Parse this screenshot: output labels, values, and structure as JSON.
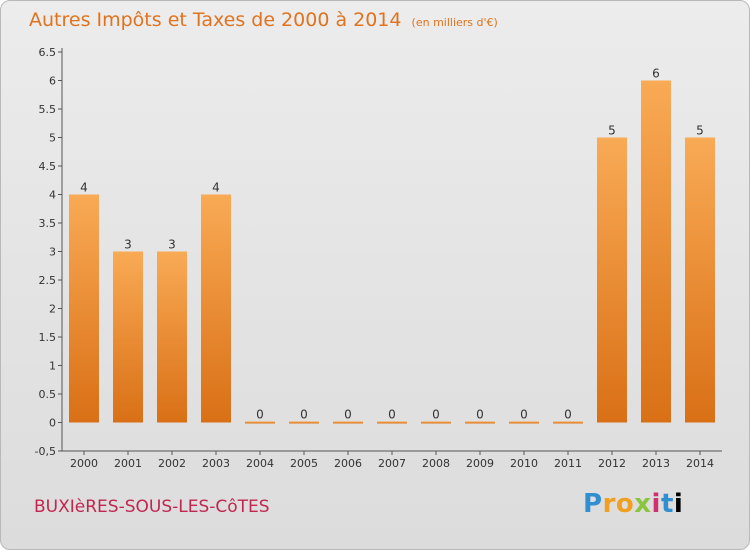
{
  "title": "Autres Impôts et Taxes de 2000 à 2014",
  "subtitle": "(en milliers d'€)",
  "commune": "BUXIèRES-SOUS-LES-CôTES",
  "logo_text": "Proxiti",
  "colors": {
    "bar_light": "#f9aa55",
    "bar_dark": "#d97016",
    "title": "#e0731f",
    "commune": "#c2264f"
  },
  "chart_data": {
    "type": "bar",
    "title": "Autres Impôts et Taxes de 2000 à 2014",
    "subtitle": "(en milliers d'€)",
    "categories": [
      "2000",
      "2001",
      "2002",
      "2003",
      "2004",
      "2005",
      "2006",
      "2007",
      "2008",
      "2009",
      "2010",
      "2011",
      "2012",
      "2013",
      "2014"
    ],
    "values": [
      4,
      3,
      3,
      4,
      0,
      0,
      0,
      0,
      0,
      0,
      0,
      0,
      5,
      6,
      5
    ],
    "ylim": [
      -0.5,
      6.5
    ],
    "yticks": [
      "-0,5",
      "0",
      "0.5",
      "1",
      "1.5",
      "2",
      "2.5",
      "3",
      "3.5",
      "4",
      "4.5",
      "5",
      "5.5",
      "6",
      "6.5"
    ],
    "grid": false,
    "xlabel": "",
    "ylabel": ""
  }
}
